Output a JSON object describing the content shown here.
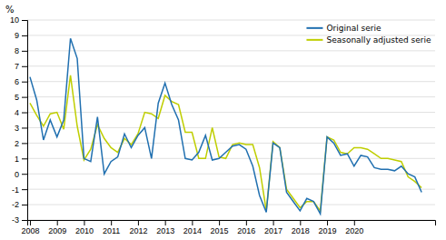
{
  "chart_data": {
    "type": "line",
    "ylabel": "%",
    "x": [
      2008,
      2008.25,
      2008.5,
      2008.75,
      2009,
      2009.25,
      2009.5,
      2009.75,
      2010,
      2010.25,
      2010.5,
      2010.75,
      2011,
      2011.25,
      2011.5,
      2011.75,
      2012,
      2012.25,
      2012.5,
      2012.75,
      2013,
      2013.25,
      2013.5,
      2013.75,
      2014,
      2014.25,
      2014.5,
      2014.75,
      2015,
      2015.25,
      2015.5,
      2015.75,
      2016,
      2016.25,
      2016.5,
      2016.75,
      2017,
      2017.25,
      2017.5,
      2017.75,
      2018,
      2018.25,
      2018.5,
      2018.75,
      2019,
      2019.25,
      2019.5,
      2019.75,
      2020,
      2020.25,
      2020.5,
      2020.75,
      2021,
      2021.25,
      2021.5,
      2021.75,
      2022,
      2022.25,
      2022.5
    ],
    "series": [
      {
        "name": "Original serie",
        "color": "#2170B0",
        "values": [
          6.3,
          4.8,
          2.2,
          3.5,
          2.4,
          3.5,
          8.8,
          7.5,
          1.0,
          0.8,
          3.7,
          0.0,
          0.8,
          1.1,
          2.6,
          1.7,
          2.5,
          3.0,
          1.0,
          4.6,
          5.9,
          4.5,
          3.5,
          1.0,
          0.9,
          1.4,
          2.5,
          0.9,
          1.0,
          1.4,
          1.8,
          1.9,
          1.6,
          0.5,
          -1.4,
          -2.5,
          2.0,
          1.7,
          -1.2,
          -1.8,
          -2.4,
          -1.6,
          -1.8,
          -2.6,
          2.4,
          2.0,
          1.2,
          1.3,
          0.5,
          1.2,
          1.1,
          0.4,
          0.3,
          0.3,
          0.2,
          0.5,
          0.0,
          -0.2,
          -1.2
        ]
      },
      {
        "name": "Seasonally adjusted serie",
        "color": "#BFCE00",
        "values": [
          4.6,
          3.8,
          3.1,
          3.9,
          4.0,
          2.9,
          6.4,
          3.1,
          0.9,
          1.6,
          3.2,
          2.3,
          1.7,
          1.4,
          2.3,
          1.9,
          2.6,
          4.0,
          3.9,
          3.6,
          5.1,
          4.7,
          4.5,
          2.7,
          2.7,
          1.0,
          1.0,
          3.0,
          1.1,
          1.0,
          1.9,
          2.0,
          1.9,
          1.9,
          0.4,
          -2.4,
          2.1,
          1.7,
          -1.0,
          -1.6,
          -2.2,
          -1.8,
          -1.8,
          -2.4,
          2.4,
          2.2,
          1.4,
          1.3,
          1.7,
          1.7,
          1.6,
          1.3,
          1.0,
          1.0,
          0.9,
          0.8,
          -0.2,
          -0.5,
          -0.9
        ]
      }
    ],
    "xlim": [
      2007.9,
      2023.0
    ],
    "xticks": [
      2008,
      2009,
      2010,
      2011,
      2012,
      2013,
      2014,
      2015,
      2016,
      2017,
      2018,
      2019,
      2020
    ],
    "ylim": [
      -3,
      10
    ],
    "yticks": [
      -3,
      -2,
      -1,
      0,
      1,
      2,
      3,
      4,
      5,
      6,
      7,
      8,
      9,
      10
    ],
    "grid": true,
    "legend": "upper right"
  }
}
